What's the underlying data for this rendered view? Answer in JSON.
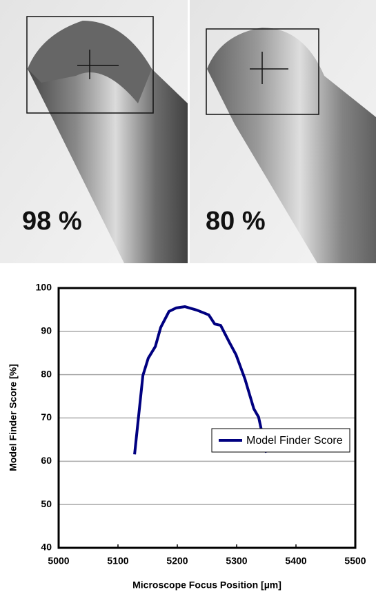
{
  "images": [
    {
      "label": "98 %"
    },
    {
      "label": "80 %"
    }
  ],
  "chart_data": {
    "type": "line",
    "xlabel": "Microscope Focus Position [µm]",
    "ylabel": "Model Finder Score [%]",
    "x": [
      5128,
      5142,
      5151,
      5163,
      5172,
      5186,
      5198,
      5213,
      5233,
      5253,
      5263,
      5273,
      5288,
      5299,
      5314,
      5329,
      5337,
      5350
    ],
    "series": [
      {
        "name": "Model Finder Score",
        "color": "#000080",
        "values": [
          61.6,
          79.8,
          83.8,
          86.5,
          90.9,
          94.6,
          95.4,
          95.7,
          94.9,
          93.8,
          91.7,
          91.4,
          87.4,
          84.6,
          79,
          72.1,
          70.2,
          62
        ]
      }
    ],
    "xlim": [
      5000,
      5500
    ],
    "xticks": [
      5000,
      5100,
      5200,
      5300,
      5400,
      5500
    ],
    "ylim": [
      40,
      100
    ],
    "yticks": [
      40,
      50,
      60,
      70,
      80,
      90,
      100
    ],
    "grid": true,
    "legend": "lower right"
  }
}
